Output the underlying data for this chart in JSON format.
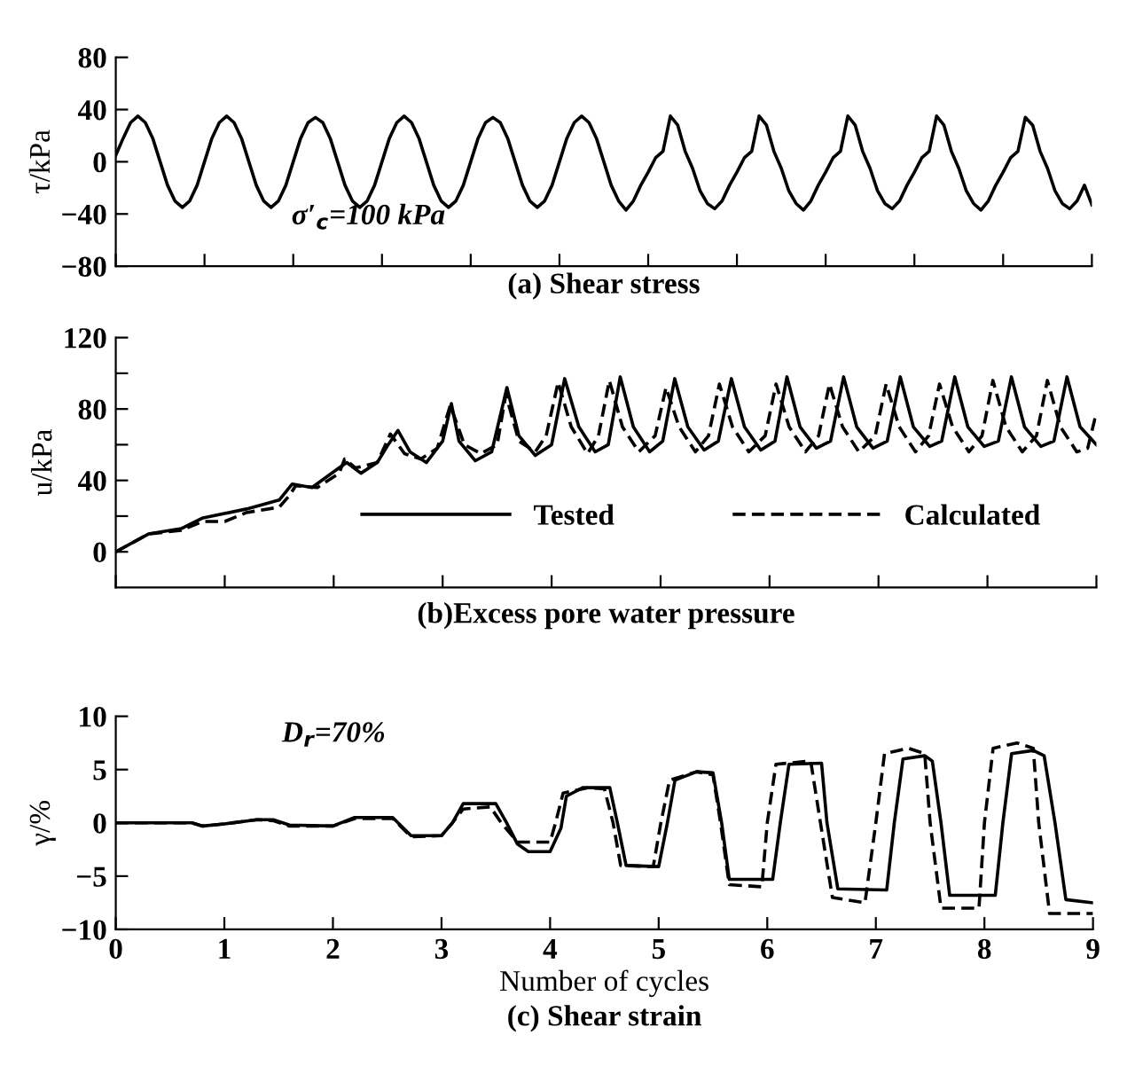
{
  "chart_data": [
    {
      "type": "line",
      "title": "(a) Shear stress",
      "ylabel": "τ/kPa",
      "annotations": [
        "σ′$_{c}$=100 kPa"
      ],
      "categories": [
        null,
        null,
        null,
        null,
        null,
        null,
        null,
        null,
        null,
        null,
        null,
        null,
        null,
        null,
        null,
        null,
        null,
        null,
        null,
        null,
        null,
        null,
        null,
        null,
        null,
        null,
        null,
        null,
        null,
        null,
        null,
        null,
        null,
        null,
        null,
        null,
        null,
        null,
        null,
        null,
        null,
        null,
        null,
        null,
        null,
        null,
        null,
        null,
        null,
        null,
        null,
        null,
        null,
        null,
        null,
        null,
        null,
        null,
        null,
        null,
        null,
        null,
        null,
        null,
        null,
        null,
        null,
        null,
        null,
        null,
        null,
        null,
        null,
        null,
        null,
        null,
        null,
        null,
        null,
        null,
        null,
        null,
        null,
        null,
        null,
        null,
        null,
        null,
        null,
        null,
        null,
        null,
        null,
        null,
        null,
        null,
        null,
        null,
        null,
        null,
        null,
        null,
        null,
        null,
        null,
        null,
        null,
        null,
        null,
        null,
        null,
        null,
        null,
        null,
        null,
        null,
        null,
        null,
        null,
        null,
        null,
        null,
        null,
        null,
        null,
        null,
        null,
        null,
        null,
        null,
        null,
        null,
        null
      ],
      "ylim": [
        -80,
        80
      ],
      "yticks": [
        -80,
        -40,
        0,
        40,
        80
      ],
      "tick_labels": "y",
      "grid": false,
      "legend": false,
      "series": [
        {
          "color": "#000000",
          "line_style": "solid",
          "values": [
            5,
            18,
            30,
            35,
            30,
            18,
            0,
            -18,
            -30,
            -35,
            -30,
            -18,
            0,
            18,
            30,
            35,
            30,
            18,
            0,
            -18,
            -30,
            -35,
            -30,
            -18,
            0,
            18,
            30,
            34,
            30,
            18,
            0,
            -18,
            -30,
            -35,
            -30,
            -18,
            0,
            18,
            30,
            35,
            30,
            18,
            0,
            -18,
            -30,
            -35,
            -30,
            -18,
            0,
            18,
            30,
            34,
            30,
            18,
            0,
            -18,
            -30,
            -35,
            -30,
            -18,
            0,
            18,
            30,
            35,
            30,
            18,
            0,
            -18,
            -30,
            -37,
            -30,
            -18,
            -8,
            3,
            8,
            35,
            28,
            8,
            -5,
            -22,
            -32,
            -36,
            -30,
            -18,
            -8,
            3,
            8,
            35,
            28,
            8,
            -5,
            -22,
            -32,
            -37,
            -30,
            -18,
            -8,
            3,
            8,
            35,
            28,
            8,
            -5,
            -22,
            -32,
            -36,
            -30,
            -18,
            -8,
            3,
            8,
            35,
            28,
            8,
            -5,
            -22,
            -32,
            -37,
            -30,
            -18,
            -8,
            3,
            8,
            34,
            28,
            8,
            -5,
            -22,
            -32,
            -36,
            -30,
            -18,
            -33
          ]
        }
      ]
    },
    {
      "type": "line",
      "title": "(b)Excess pore water pressure",
      "ylabel": "u/kPa",
      "xlim": [
        0,
        9
      ],
      "xticks": [
        {
          "value": 0,
          "label": null
        },
        {
          "value": 1,
          "label": null
        },
        {
          "value": 2,
          "label": null
        },
        {
          "value": 3,
          "label": null
        },
        {
          "value": 4,
          "label": null
        },
        {
          "value": 5,
          "label": null
        },
        {
          "value": 6,
          "label": null
        },
        {
          "value": 7,
          "label": null
        },
        {
          "value": 8,
          "label": null
        },
        {
          "value": 9,
          "label": null
        }
      ],
      "ylim": [
        -20,
        120
      ],
      "yticks": [
        0,
        {
          "value": 20,
          "label": null
        },
        40,
        {
          "value": 60,
          "label": null
        },
        80,
        {
          "value": 100,
          "label": null
        },
        120
      ],
      "tick_labels": "y",
      "grid": false,
      "legend": "bottom right",
      "series": [
        {
          "name": "Tested",
          "color": "#000000",
          "line_style": "solid",
          "x": [
            0,
            0.3,
            0.6,
            0.8,
            1.2,
            1.5,
            1.62,
            1.8,
            2.05,
            2.12,
            2.25,
            2.4,
            2.5,
            2.59,
            2.7,
            2.85,
            3.0,
            3.08,
            3.15,
            3.3,
            3.45,
            3.59,
            3.7,
            3.85,
            4.0,
            4.12,
            4.25,
            4.4,
            4.52,
            4.63,
            4.75,
            4.9,
            5.02,
            5.13,
            5.25,
            5.4,
            5.53,
            5.65,
            5.77,
            5.92,
            6.05,
            6.16,
            6.28,
            6.43,
            6.56,
            6.68,
            6.8,
            6.95,
            7.08,
            7.2,
            7.32,
            7.47,
            7.58,
            7.7,
            7.82,
            7.97,
            8.1,
            8.22,
            8.34,
            8.49,
            8.61,
            8.73,
            8.85,
            9.0
          ],
          "values": [
            0,
            10,
            13,
            19,
            24,
            29,
            38,
            36,
            47,
            50,
            44,
            50,
            60,
            68,
            56,
            50,
            62,
            83,
            62,
            51,
            56,
            92,
            65,
            54,
            60,
            97,
            70,
            56,
            60,
            98,
            70,
            56,
            62,
            97,
            70,
            57,
            62,
            97,
            70,
            57,
            62,
            98,
            70,
            58,
            62,
            98,
            70,
            58,
            62,
            98,
            70,
            59,
            62,
            98,
            70,
            59,
            62,
            98,
            70,
            59,
            62,
            98,
            70,
            60
          ]
        },
        {
          "name": "Calculated",
          "color": "#000000",
          "line_style": "dashed",
          "x": [
            0,
            0.3,
            0.6,
            0.8,
            1.0,
            1.2,
            1.5,
            1.6,
            1.65,
            1.85,
            2.05,
            2.1,
            2.2,
            2.4,
            2.52,
            2.65,
            2.8,
            2.95,
            3.07,
            3.2,
            3.35,
            3.5,
            3.58,
            3.7,
            3.85,
            3.95,
            4.06,
            4.18,
            4.33,
            4.43,
            4.53,
            4.65,
            4.8,
            4.95,
            5.05,
            5.17,
            5.32,
            5.44,
            5.54,
            5.66,
            5.81,
            5.96,
            6.06,
            6.18,
            6.33,
            6.45,
            6.55,
            6.67,
            6.82,
            6.97,
            7.07,
            7.19,
            7.34,
            7.46,
            7.56,
            7.68,
            7.83,
            7.95,
            8.05,
            8.17,
            8.32,
            8.45,
            8.55,
            8.67,
            8.82,
            8.92,
            9.0
          ],
          "values": [
            0,
            10,
            12,
            17,
            17,
            22,
            25,
            32,
            37,
            36,
            44,
            52,
            47,
            50,
            66,
            55,
            52,
            58,
            82,
            60,
            55,
            60,
            88,
            62,
            56,
            65,
            95,
            70,
            55,
            65,
            96,
            70,
            56,
            65,
            92,
            70,
            56,
            65,
            94,
            70,
            56,
            65,
            94,
            70,
            56,
            65,
            94,
            70,
            56,
            65,
            94,
            70,
            56,
            65,
            94,
            70,
            56,
            65,
            96,
            70,
            56,
            65,
            96,
            70,
            56,
            58,
            78
          ]
        }
      ]
    },
    {
      "type": "line",
      "title": "(c) Shear strain",
      "xlabel": "Number of cycles",
      "ylabel": "γ/%",
      "annotations": [
        "D$_{r}$=70%"
      ],
      "xlim": [
        0,
        9
      ],
      "xticks": [
        0,
        1,
        2,
        3,
        4,
        5,
        6,
        7,
        8,
        9
      ],
      "ylim": [
        -10,
        10
      ],
      "yticks": [
        -10,
        -5,
        0,
        5,
        10
      ],
      "grid": false,
      "legend": false,
      "series": [
        {
          "color": "#000000",
          "line_style": "solid",
          "x": [
            0,
            0.7,
            0.8,
            1.0,
            1.3,
            1.45,
            1.6,
            2.0,
            2.2,
            2.55,
            2.72,
            3.0,
            3.1,
            3.2,
            3.5,
            3.6,
            3.7,
            3.8,
            4.0,
            4.1,
            4.15,
            4.3,
            4.55,
            4.62,
            4.7,
            5.0,
            5.08,
            5.15,
            5.35,
            5.5,
            5.58,
            5.65,
            6.05,
            6.12,
            6.2,
            6.5,
            6.55,
            6.65,
            7.1,
            7.17,
            7.25,
            7.45,
            7.52,
            7.6,
            7.68,
            8.1,
            8.17,
            8.25,
            8.45,
            8.55,
            8.65,
            8.75,
            9.0
          ],
          "values": [
            0,
            0,
            -0.3,
            -0.1,
            0.3,
            0.3,
            -0.2,
            -0.3,
            0.5,
            0.5,
            -1.2,
            -1.2,
            0,
            1.8,
            1.8,
            0,
            -2,
            -2.7,
            -2.7,
            -0.5,
            2.5,
            3.3,
            3.3,
            0,
            -4,
            -4.1,
            0,
            4.0,
            4.8,
            4.7,
            0,
            -5.3,
            -5.3,
            0,
            5.5,
            5.6,
            0,
            -6.2,
            -6.3,
            0,
            6.0,
            6.3,
            5.8,
            0,
            -6.8,
            -6.8,
            0,
            6.5,
            6.8,
            6.3,
            0,
            -7.2,
            -7.5
          ]
        },
        {
          "color": "#000000",
          "line_style": "dashed",
          "x": [
            0,
            0.7,
            0.8,
            1.0,
            1.3,
            1.45,
            1.6,
            2.0,
            2.2,
            2.55,
            2.72,
            3.0,
            3.1,
            3.2,
            3.45,
            3.55,
            3.7,
            4.0,
            4.05,
            4.12,
            4.35,
            4.5,
            4.58,
            4.65,
            4.95,
            5.02,
            5.1,
            5.35,
            5.5,
            5.57,
            5.65,
            5.95,
            6.0,
            6.08,
            6.4,
            6.49,
            6.6,
            6.9,
            7.0,
            7.08,
            7.3,
            7.45,
            7.5,
            7.6,
            7.95,
            8.0,
            8.08,
            8.3,
            8.45,
            8.5,
            8.6,
            9.0
          ],
          "values": [
            0,
            0,
            -0.3,
            -0.1,
            0.3,
            0.2,
            -0.3,
            -0.3,
            0.4,
            0.4,
            -1.3,
            -1.2,
            0,
            1.3,
            1.5,
            0,
            -1.8,
            -1.8,
            0,
            2.8,
            3.3,
            3.2,
            0,
            -4,
            -4.1,
            0,
            4.0,
            4.8,
            4.5,
            0,
            -5.8,
            -6,
            0,
            5.5,
            5.8,
            0,
            -7,
            -7.5,
            0,
            6.5,
            7.0,
            6.5,
            0,
            -8,
            -8,
            0,
            7,
            7.5,
            7,
            0,
            -8.5,
            -8.5
          ]
        }
      ]
    }
  ]
}
